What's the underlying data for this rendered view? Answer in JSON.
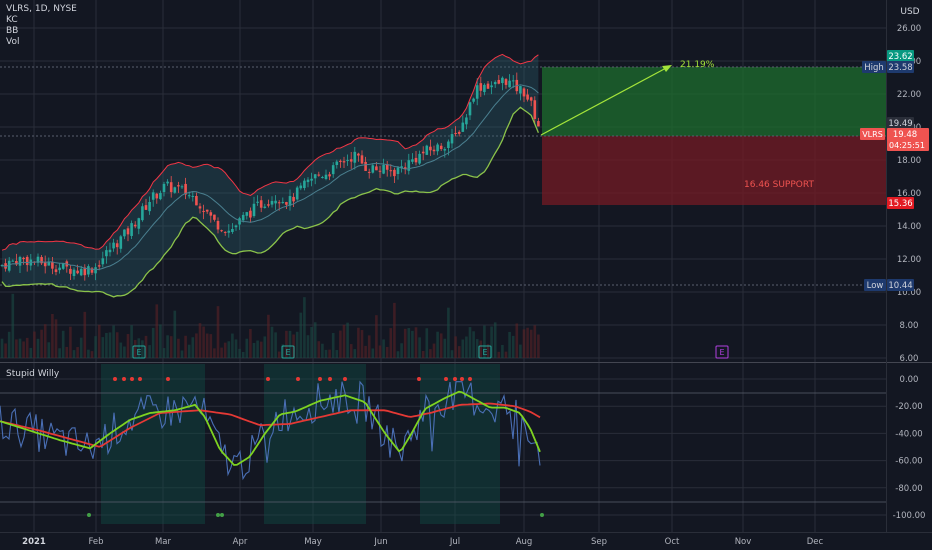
{
  "header": {
    "title": "VLRS, 1D, NYSE",
    "indicators": [
      "KC",
      "BB",
      "Vol"
    ],
    "currency": "USD"
  },
  "oscillator": {
    "name": "Stupid Willy"
  },
  "price_axis": {
    "ticks": [
      "26.00",
      "24.00",
      "22.00",
      "20.00",
      "18.00",
      "16.00",
      "14.00",
      "12.00",
      "10.00",
      "8.00",
      "6.00"
    ],
    "tags": {
      "target": "23.62",
      "high_label": "High",
      "high_value": "23.58",
      "last_price": "19.49",
      "symbol": "VLRS",
      "symbol_price": "19.48",
      "countdown": "04:25:51",
      "stop": "15.36",
      "low_label": "Low",
      "low_value": "10.44"
    }
  },
  "osc_axis": {
    "ticks": [
      "0.00",
      "-20.00",
      "-40.00",
      "-60.00",
      "-80.00",
      "-100.00"
    ]
  },
  "time_axis": {
    "labels": [
      "2021",
      "Feb",
      "Mar",
      "Apr",
      "May",
      "Jun",
      "Jul",
      "Aug",
      "Sep",
      "Oct",
      "Nov",
      "Dec"
    ]
  },
  "annotations": {
    "target_pct": "21.19%",
    "support_text": "16.46 SUPPORT",
    "earnings_marker": "E"
  },
  "colors": {
    "background": "#131722",
    "grid": "#2a2e39",
    "up": "#26a69a",
    "down": "#ef5350",
    "bb_line": "#8bc34a",
    "kc_line": "#f23645",
    "arrow": "#a4e43a",
    "target_zone": "#1e6e2e",
    "stop_zone": "#6e1a24",
    "osc_line": "#4a6fb5",
    "osc_fast": "#7ed321",
    "osc_slow": "#e53935"
  },
  "chart_data": {
    "type": "candlestick",
    "symbol": "VLRS",
    "timeframe": "1D",
    "exchange": "NYSE",
    "ylim": [
      6,
      27
    ],
    "high": 23.58,
    "low": 10.44,
    "last": 19.48,
    "target": 23.62,
    "stop": 15.36,
    "support": 16.46,
    "target_pct": 21.19,
    "price_path": [
      [
        0,
        11.6
      ],
      [
        20,
        12.0
      ],
      [
        40,
        11.8
      ],
      [
        60,
        11.5
      ],
      [
        80,
        11.3
      ],
      [
        95,
        11.5
      ],
      [
        110,
        12.6
      ],
      [
        130,
        13.8
      ],
      [
        150,
        15.6
      ],
      [
        165,
        16.4
      ],
      [
        180,
        16.2
      ],
      [
        195,
        15.7
      ],
      [
        205,
        15.0
      ],
      [
        215,
        14.2
      ],
      [
        230,
        13.7
      ],
      [
        245,
        14.6
      ],
      [
        260,
        15.3
      ],
      [
        275,
        15.8
      ],
      [
        290,
        15.5
      ],
      [
        300,
        16.2
      ],
      [
        315,
        17.0
      ],
      [
        330,
        17.3
      ],
      [
        345,
        18.0
      ],
      [
        355,
        18.3
      ],
      [
        365,
        17.6
      ],
      [
        380,
        17.4
      ],
      [
        395,
        17.3
      ],
      [
        410,
        17.9
      ],
      [
        425,
        18.5
      ],
      [
        440,
        18.8
      ],
      [
        455,
        19.4
      ],
      [
        465,
        20.5
      ],
      [
        475,
        22.3
      ],
      [
        485,
        22.6
      ],
      [
        495,
        22.5
      ],
      [
        505,
        22.9
      ],
      [
        515,
        22.4
      ],
      [
        525,
        22.1
      ],
      [
        532,
        21.2
      ],
      [
        538,
        20.2
      ],
      [
        542,
        19.5
      ]
    ],
    "oscillator": {
      "ylim": [
        -104,
        4
      ],
      "fast_path": [
        [
          0,
          -31
        ],
        [
          30,
          -38
        ],
        [
          60,
          -45
        ],
        [
          90,
          -51
        ],
        [
          110,
          -40
        ],
        [
          130,
          -30
        ],
        [
          150,
          -25
        ],
        [
          175,
          -23
        ],
        [
          195,
          -19
        ],
        [
          205,
          -28
        ],
        [
          220,
          -52
        ],
        [
          235,
          -64
        ],
        [
          250,
          -57
        ],
        [
          265,
          -40
        ],
        [
          280,
          -26
        ],
        [
          295,
          -24
        ],
        [
          320,
          -16
        ],
        [
          345,
          -12
        ],
        [
          365,
          -17
        ],
        [
          385,
          -40
        ],
        [
          400,
          -54
        ],
        [
          410,
          -42
        ],
        [
          425,
          -22
        ],
        [
          445,
          -14
        ],
        [
          460,
          -9
        ],
        [
          475,
          -15
        ],
        [
          490,
          -21
        ],
        [
          505,
          -21
        ],
        [
          520,
          -25
        ],
        [
          530,
          -36
        ],
        [
          542,
          -57
        ]
      ],
      "slow_path": [
        [
          0,
          -31
        ],
        [
          40,
          -38
        ],
        [
          80,
          -46
        ],
        [
          100,
          -50
        ],
        [
          130,
          -36
        ],
        [
          160,
          -25
        ],
        [
          200,
          -23
        ],
        [
          230,
          -26
        ],
        [
          260,
          -34
        ],
        [
          290,
          -33
        ],
        [
          320,
          -28
        ],
        [
          350,
          -23
        ],
        [
          385,
          -23
        ],
        [
          410,
          -28
        ],
        [
          430,
          -25
        ],
        [
          460,
          -19
        ],
        [
          490,
          -18
        ],
        [
          515,
          -20
        ],
        [
          530,
          -24
        ],
        [
          542,
          -29
        ]
      ]
    }
  }
}
